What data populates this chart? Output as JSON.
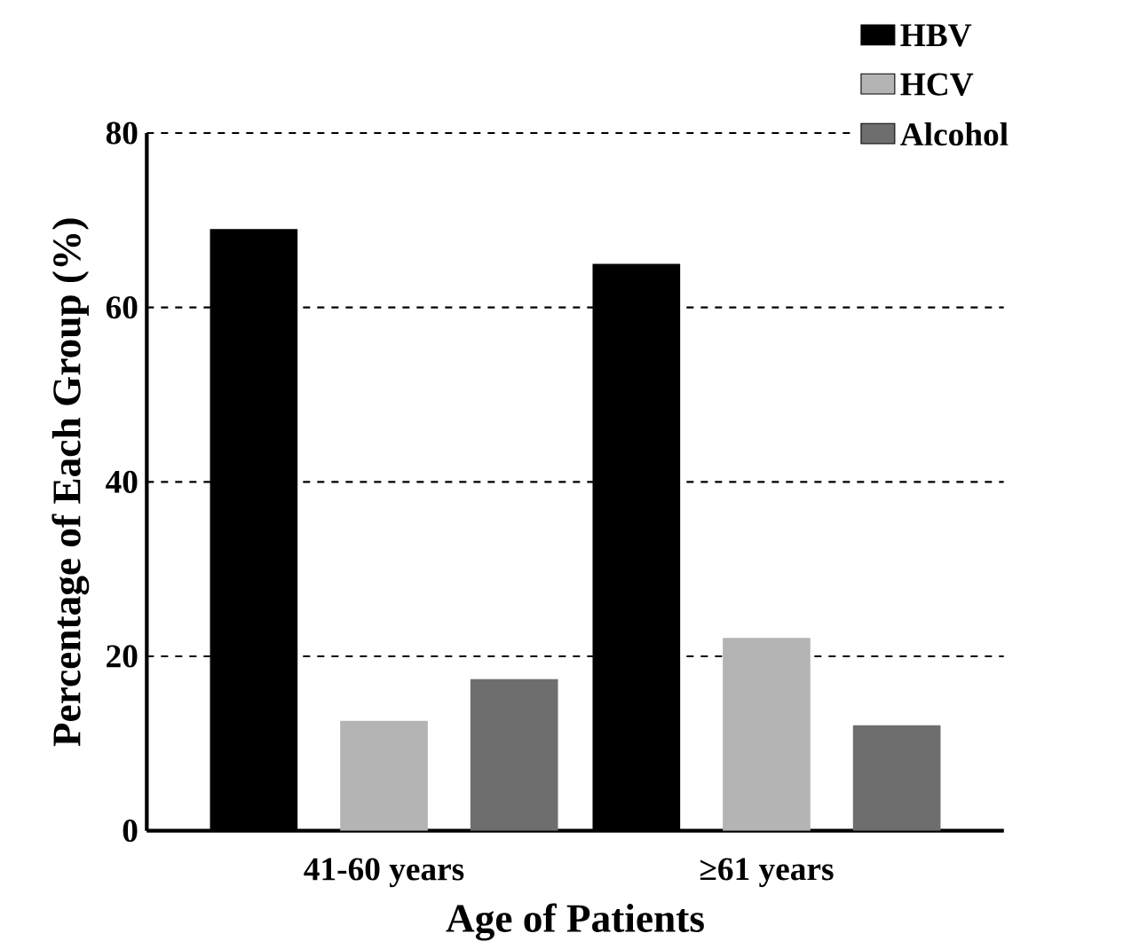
{
  "chart_data": {
    "type": "bar",
    "xlabel": "Age of Patients",
    "ylabel": "Percentage of Each Group (%)",
    "categories": [
      "41-60 years",
      "≥61 years"
    ],
    "series": [
      {
        "name": "HBV",
        "color": "#000000",
        "values": [
          69.0,
          65.0
        ]
      },
      {
        "name": "HCV",
        "color": "#b4b4b4",
        "values": [
          12.6,
          22.1
        ]
      },
      {
        "name": "Alcohol",
        "color": "#6e6e6e",
        "values": [
          17.4,
          12.1
        ]
      }
    ],
    "ylim": [
      0,
      80
    ],
    "yticks": [
      0,
      20,
      40,
      60,
      80
    ],
    "grid": "y",
    "legend": "top right"
  }
}
